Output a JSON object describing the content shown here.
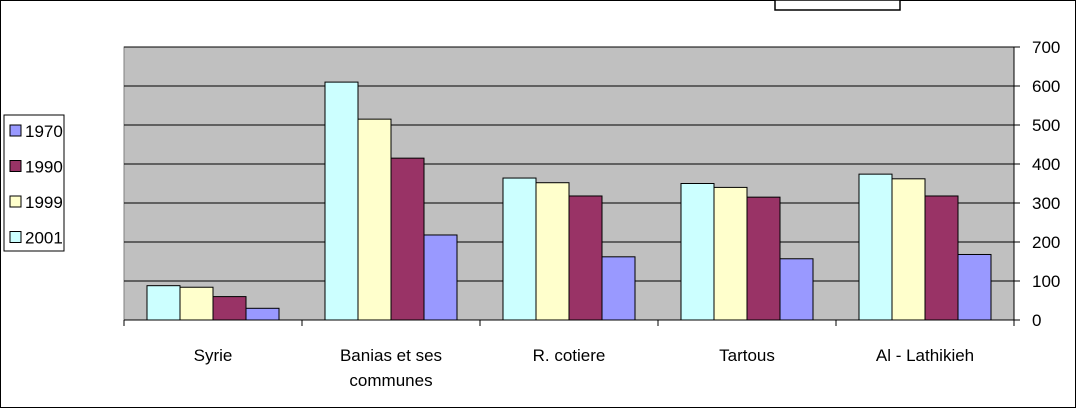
{
  "chart_data": {
    "type": "bar",
    "categories": [
      "Syrie",
      "Banias et ses communes",
      "R. cotiere",
      "Tartous",
      "Al - Lathikieh"
    ],
    "category_label_lines": [
      [
        "Syrie"
      ],
      [
        "Banias et ses",
        "communes"
      ],
      [
        "R. cotiere"
      ],
      [
        "Tartous"
      ],
      [
        "Al - Lathikieh"
      ]
    ],
    "series": [
      {
        "name": "1970",
        "values": [
          30,
          218,
          162,
          157,
          168
        ]
      },
      {
        "name": "1990",
        "values": [
          60,
          415,
          318,
          315,
          318
        ]
      },
      {
        "name": "1999",
        "values": [
          84,
          515,
          352,
          340,
          362
        ]
      },
      {
        "name": "2001",
        "values": [
          88,
          610,
          364,
          350,
          374
        ]
      }
    ],
    "draw_order": [
      "2001",
      "1999",
      "1990",
      "1970"
    ],
    "colors": {
      "1970": "#9999FF",
      "1990": "#993366",
      "1999": "#FFFFCC",
      "2001": "#CCFFFF"
    },
    "plot_background": "#C0C0C0",
    "ylim": [
      0,
      700
    ],
    "yticks": [
      0,
      100,
      200,
      300,
      400,
      500,
      600,
      700
    ],
    "y_axis_side": "right",
    "grid": true,
    "legend_position": "left",
    "title": "",
    "xlabel": "",
    "ylabel": ""
  }
}
